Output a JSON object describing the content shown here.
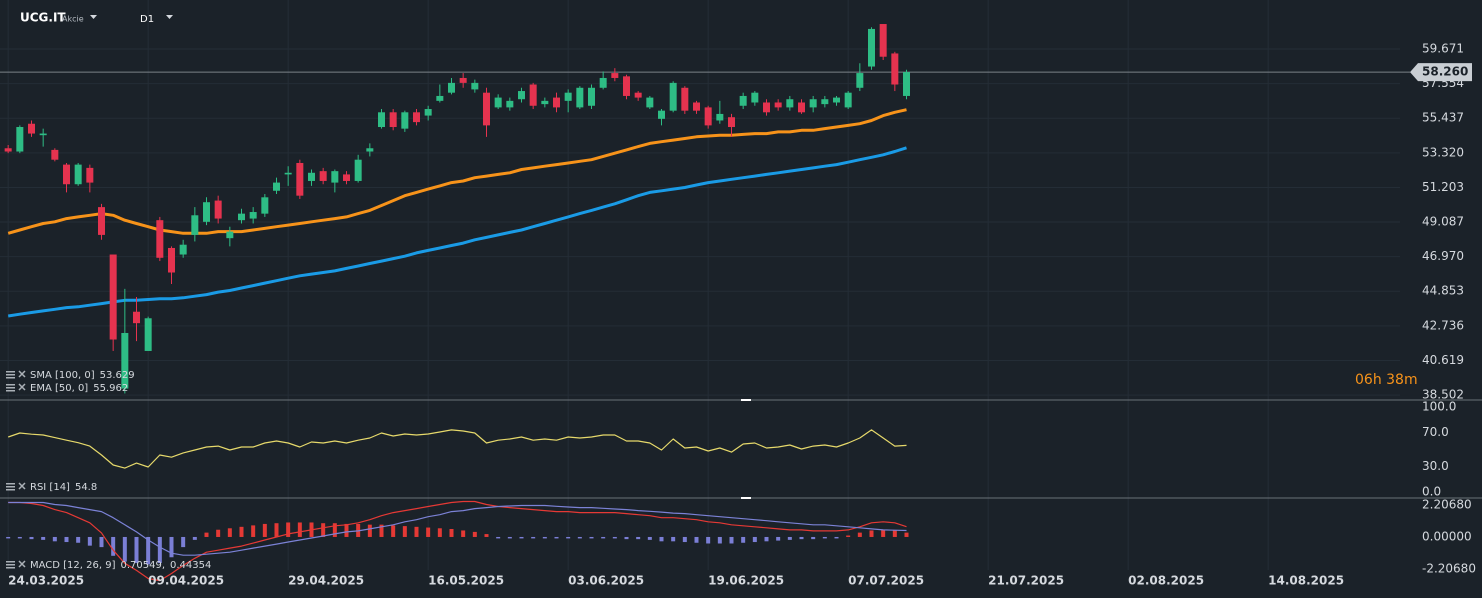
{
  "header": {
    "symbol": "UCG.IT",
    "asset_type": "Akcie",
    "timeframe": "D1"
  },
  "countdown": "06h 38m",
  "chart_data": [
    {
      "type": "candlestick",
      "xlim": [
        -0.7,
        119.3
      ],
      "xticks": [
        {
          "value": 0,
          "label": "24.03.2025"
        },
        {
          "value": 12,
          "label": "09.04.2025"
        },
        {
          "value": 24,
          "label": "29.04.2025"
        },
        {
          "value": 36,
          "label": "16.05.2025"
        },
        {
          "value": 48,
          "label": "03.06.2025"
        },
        {
          "value": 60,
          "label": "19.06.2025"
        },
        {
          "value": 72,
          "label": "07.07.2025"
        },
        {
          "value": 84,
          "label": "21.07.2025"
        },
        {
          "value": 96,
          "label": "02.08.2025"
        },
        {
          "value": 108,
          "label": "14.08.2025"
        }
      ],
      "ylim": [
        38.2,
        62.67
      ],
      "yticks": [
        38.502,
        40.619,
        42.736,
        44.853,
        {
          "value": 46.97,
          "label": "46.970"
        },
        49.087,
        51.203,
        {
          "value": 53.32,
          "label": "53.320"
        },
        55.437,
        57.554,
        59.671
      ],
      "grid": true,
      "up_color": "#2ebd85",
      "down_color": "#e5334f",
      "open": [
        53.6,
        53.4,
        55.1,
        54.4,
        53.5,
        52.6,
        51.4,
        52.4,
        50.0,
        47.1,
        38.9,
        43.6,
        41.2,
        49.2,
        47.5,
        47.1,
        48.3,
        49.1,
        50.4,
        48.1,
        49.2,
        49.3,
        49.6,
        51.0,
        52.0,
        52.7,
        51.6,
        52.2,
        51.5,
        52.0,
        51.6,
        53.4,
        54.9,
        55.8,
        54.8,
        55.8,
        55.6,
        56.5,
        57.0,
        57.9,
        57.2,
        57.0,
        56.1,
        56.1,
        56.6,
        57.5,
        56.3,
        56.7,
        56.5,
        56.1,
        56.2,
        57.3,
        58.2,
        58.0,
        57.0,
        56.1,
        55.4,
        55.9,
        57.3,
        56.4,
        56.1,
        55.3,
        55.5,
        56.2,
        56.4,
        56.4,
        56.4,
        56.1,
        56.4,
        56.1,
        56.3,
        56.4,
        56.1,
        57.3,
        58.6,
        61.2,
        59.4,
        56.8
      ],
      "high": [
        53.8,
        55.0,
        55.3,
        54.8,
        53.6,
        52.7,
        52.7,
        52.6,
        50.2,
        47.1,
        45.0,
        44.5,
        43.3,
        49.4,
        47.6,
        48.0,
        50.0,
        50.6,
        50.7,
        48.8,
        49.9,
        50.0,
        50.8,
        51.8,
        52.5,
        52.9,
        52.3,
        52.4,
        52.3,
        52.2,
        53.2,
        53.9,
        56.0,
        56.0,
        55.9,
        56.0,
        56.2,
        57.5,
        57.9,
        58.2,
        57.8,
        57.3,
        56.9,
        56.7,
        57.3,
        57.6,
        56.7,
        57.0,
        57.2,
        57.4,
        57.5,
        58.3,
        58.5,
        58.1,
        57.1,
        56.8,
        56.0,
        57.7,
        57.4,
        56.5,
        56.2,
        56.5,
        55.7,
        57.0,
        57.1,
        56.6,
        56.6,
        56.8,
        56.6,
        56.8,
        56.8,
        56.8,
        57.1,
        58.8,
        61.0,
        61.2,
        59.5,
        58.4
      ],
      "low": [
        53.3,
        53.3,
        54.3,
        53.7,
        52.8,
        50.9,
        51.3,
        50.9,
        48.0,
        41.2,
        38.6,
        41.8,
        41.2,
        46.7,
        45.3,
        46.9,
        47.9,
        48.9,
        49.0,
        47.6,
        49.0,
        49.0,
        49.4,
        50.8,
        51.3,
        50.5,
        51.3,
        51.4,
        50.9,
        51.4,
        51.5,
        53.1,
        54.8,
        54.7,
        54.6,
        55.0,
        55.3,
        56.4,
        56.9,
        57.3,
        57.0,
        54.3,
        56.0,
        55.9,
        56.4,
        56.0,
        56.1,
        55.8,
        55.8,
        56.0,
        56.0,
        57.2,
        57.7,
        56.6,
        56.5,
        56.0,
        55.0,
        55.8,
        55.7,
        55.7,
        54.8,
        55.1,
        54.3,
        56.0,
        56.2,
        55.6,
        55.9,
        55.9,
        55.7,
        55.8,
        56.1,
        56.2,
        56.0,
        57.1,
        58.4,
        59.0,
        57.1,
        56.6
      ],
      "close": [
        53.4,
        54.9,
        54.5,
        54.5,
        52.9,
        51.4,
        52.6,
        51.5,
        48.3,
        41.9,
        42.3,
        42.9,
        43.2,
        46.9,
        46.0,
        47.7,
        49.5,
        50.3,
        49.3,
        48.5,
        49.6,
        49.7,
        50.6,
        51.5,
        52.1,
        50.7,
        52.1,
        51.6,
        52.2,
        51.6,
        52.9,
        53.6,
        55.8,
        54.9,
        55.8,
        55.2,
        56.0,
        56.8,
        57.6,
        57.6,
        57.6,
        55.0,
        56.7,
        56.5,
        57.1,
        56.2,
        56.5,
        56.1,
        57.0,
        57.3,
        57.3,
        57.9,
        57.9,
        56.8,
        56.7,
        56.7,
        55.9,
        57.6,
        55.9,
        55.9,
        55.0,
        55.7,
        54.9,
        56.8,
        57.0,
        55.8,
        56.1,
        56.6,
        55.8,
        56.6,
        56.6,
        56.7,
        57.0,
        58.2,
        60.9,
        59.2,
        57.5,
        58.26
      ],
      "last_price": {
        "value": 58.26,
        "label": "58.260"
      },
      "series": [
        {
          "name": "SMA [100, 0]",
          "color": "#1a9be6",
          "values": [
            43.34,
            43.45,
            43.55,
            43.65,
            43.75,
            43.85,
            43.9,
            44.0,
            44.1,
            44.2,
            44.3,
            44.3,
            44.35,
            44.4,
            44.4,
            44.45,
            44.55,
            44.65,
            44.8,
            44.9,
            45.05,
            45.2,
            45.35,
            45.5,
            45.65,
            45.8,
            45.9,
            46.0,
            46.1,
            46.25,
            46.4,
            46.55,
            46.7,
            46.85,
            47.0,
            47.2,
            47.35,
            47.5,
            47.65,
            47.8,
            48.0,
            48.15,
            48.3,
            48.45,
            48.6,
            48.8,
            49.0,
            49.2,
            49.4,
            49.6,
            49.8,
            50.0,
            50.2,
            50.45,
            50.7,
            50.9,
            51.0,
            51.1,
            51.2,
            51.35,
            51.5,
            51.6,
            51.7,
            51.8,
            51.9,
            52.0,
            52.1,
            52.2,
            52.3,
            52.4,
            52.5,
            52.6,
            52.75,
            52.9,
            53.05,
            53.2,
            53.4,
            53.629
          ]
        },
        {
          "name": "EMA [50, 0]",
          "color": "#f7931a",
          "values": [
            48.4,
            48.6,
            48.8,
            49.0,
            49.1,
            49.3,
            49.4,
            49.5,
            49.6,
            49.5,
            49.2,
            49.0,
            48.8,
            48.6,
            48.5,
            48.4,
            48.4,
            48.4,
            48.5,
            48.5,
            48.5,
            48.6,
            48.7,
            48.8,
            48.9,
            49.0,
            49.1,
            49.2,
            49.3,
            49.4,
            49.6,
            49.8,
            50.1,
            50.4,
            50.7,
            50.9,
            51.1,
            51.3,
            51.5,
            51.6,
            51.8,
            51.9,
            52.0,
            52.1,
            52.3,
            52.4,
            52.5,
            52.6,
            52.7,
            52.8,
            52.9,
            53.1,
            53.3,
            53.5,
            53.7,
            53.9,
            54.0,
            54.1,
            54.2,
            54.3,
            54.35,
            54.4,
            54.4,
            54.45,
            54.5,
            54.5,
            54.6,
            54.6,
            54.7,
            54.7,
            54.8,
            54.9,
            55.0,
            55.1,
            55.3,
            55.6,
            55.8,
            55.962
          ]
        }
      ]
    },
    {
      "type": "line",
      "ylim": [
        -7,
        108.2
      ],
      "yticks": [
        {
          "value": 0,
          "label": "0.0"
        },
        {
          "value": 30,
          "label": "30.0"
        },
        {
          "value": 70,
          "label": "70.0"
        },
        {
          "value": 100,
          "label": "100.0"
        }
      ],
      "grid": false,
      "series": [
        {
          "name": "RSI [14]",
          "color": "#e6d96b",
          "values": [
            64.7,
            69.4,
            68,
            67,
            64,
            61,
            58,
            54,
            43.5,
            31.8,
            28.2,
            34,
            29.4,
            43.5,
            41,
            46,
            49.4,
            53,
            54,
            49.4,
            53,
            53,
            57.6,
            60,
            57.6,
            53,
            58.8,
            57.6,
            60,
            57.6,
            61,
            63.5,
            69.4,
            65.9,
            68.2,
            67,
            68.2,
            70.6,
            73,
            71.8,
            69.4,
            57.6,
            61,
            62.4,
            64.7,
            61,
            62.4,
            61,
            64.7,
            63.5,
            64.7,
            67,
            67,
            60,
            60,
            57.6,
            49.4,
            62.4,
            51.8,
            53,
            48.2,
            51.8,
            47,
            56.5,
            57.6,
            51.8,
            53,
            55.3,
            50.6,
            54,
            55.3,
            53,
            57.6,
            63.5,
            73,
            63.5,
            54,
            54.8
          ]
        }
      ]
    },
    {
      "type": "macd",
      "ylim": [
        -2.28,
        2.69
      ],
      "yticks": [
        {
          "value": -2.2068,
          "label": "-2.20680"
        },
        {
          "value": 0,
          "label": "0.00000"
        },
        {
          "value": 2.2068,
          "label": "2.20680"
        }
      ],
      "grid": false,
      "up_color": "#e53935",
      "down_color": "#7b7fd6",
      "histogram": [
        -0.1,
        -0.1,
        -0.15,
        -0.2,
        -0.3,
        -0.35,
        -0.4,
        -0.6,
        -0.7,
        -1.3,
        -1.7,
        -1.8,
        -1.9,
        -1.8,
        -1.4,
        -0.7,
        -0.2,
        0.3,
        0.5,
        0.6,
        0.7,
        0.8,
        0.9,
        0.95,
        1.0,
        1.0,
        1.0,
        0.95,
        0.95,
        0.9,
        0.9,
        0.85,
        0.85,
        0.8,
        0.75,
        0.7,
        0.65,
        0.6,
        0.55,
        0.45,
        0.35,
        0.2,
        -0.1,
        -0.1,
        -0.1,
        -0.1,
        -0.1,
        -0.1,
        -0.1,
        -0.1,
        -0.1,
        -0.1,
        -0.1,
        -0.15,
        -0.15,
        -0.2,
        -0.3,
        -0.3,
        -0.35,
        -0.4,
        -0.45,
        -0.45,
        -0.45,
        -0.4,
        -0.35,
        -0.3,
        -0.25,
        -0.2,
        -0.15,
        -0.15,
        -0.1,
        -0.1,
        0.1,
        0.3,
        0.45,
        0.5,
        0.45,
        0.3
      ],
      "series": [
        {
          "name": "MACD [12, 26, 9]",
          "legend_value": "0.70549,",
          "color": "#e53935",
          "values": [
            2.38,
            2.38,
            2.31,
            2.17,
            1.89,
            1.68,
            1.33,
            0.98,
            0.28,
            -0.91,
            -1.82,
            -2.31,
            -2.87,
            -3.01,
            -2.52,
            -1.96,
            -1.47,
            -1.05,
            -0.91,
            -0.77,
            -0.63,
            -0.42,
            -0.21,
            0,
            0.21,
            0.35,
            0.49,
            0.63,
            0.77,
            0.84,
            0.98,
            1.19,
            1.47,
            1.68,
            1.82,
            1.96,
            2.1,
            2.24,
            2.38,
            2.45,
            2.45,
            2.24,
            2.1,
            2.03,
            1.96,
            1.89,
            1.82,
            1.75,
            1.75,
            1.68,
            1.68,
            1.68,
            1.68,
            1.61,
            1.54,
            1.47,
            1.33,
            1.33,
            1.26,
            1.19,
            1.05,
            0.98,
            0.84,
            0.77,
            0.7,
            0.63,
            0.56,
            0.49,
            0.49,
            0.42,
            0.42,
            0.42,
            0.49,
            0.7,
            0.98,
            1.05,
            0.98,
            0.70549
          ]
        },
        {
          "legend_value": "0.44354",
          "color": "#7b82d6",
          "values": [
            2.38,
            2.38,
            2.38,
            2.38,
            2.24,
            2.17,
            2.03,
            1.89,
            1.75,
            1.33,
            0.84,
            0.35,
            -0.21,
            -0.7,
            -1.12,
            -1.26,
            -1.26,
            -1.19,
            -1.12,
            -1.05,
            -0.91,
            -0.77,
            -0.63,
            -0.49,
            -0.35,
            -0.21,
            -0.07,
            0.07,
            0.21,
            0.35,
            0.42,
            0.56,
            0.7,
            0.84,
            1.05,
            1.19,
            1.4,
            1.54,
            1.75,
            1.82,
            1.96,
            2.03,
            2.1,
            2.14,
            2.17,
            2.17,
            2.17,
            2.12,
            2.07,
            2.03,
            2.03,
            1.98,
            1.93,
            1.89,
            1.82,
            1.77,
            1.72,
            1.65,
            1.61,
            1.54,
            1.47,
            1.4,
            1.33,
            1.26,
            1.19,
            1.12,
            1.05,
            0.98,
            0.91,
            0.84,
            0.84,
            0.77,
            0.7,
            0.63,
            0.56,
            0.49,
            0.47,
            0.44354
          ]
        }
      ]
    }
  ]
}
